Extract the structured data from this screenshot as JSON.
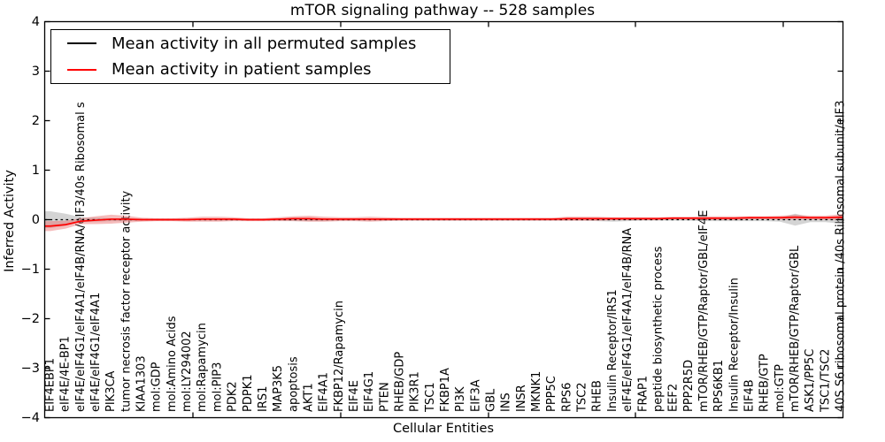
{
  "figure": {
    "title": "mTOR signaling pathway -- 528 samples",
    "background": "#ffffff",
    "frame_color": "#000000"
  },
  "chart_data": {
    "type": "line",
    "title": "mTOR signaling pathway -- 528 samples",
    "xlabel": "Cellular Entities",
    "ylabel": "Inferred Activity",
    "ylim": [
      -4,
      4
    ],
    "yticks": [
      4,
      3,
      2,
      1,
      0,
      -1,
      -2,
      -3,
      -4
    ],
    "yticklabels": [
      "4",
      "3",
      "2",
      "1",
      "0",
      "−1",
      "−2",
      "−3",
      "−4"
    ],
    "grid": false,
    "legend_position": "upper left",
    "categories": [
      "EIF4EBP1",
      "eIF4E/4E-BP1",
      "eIF4E/eIF4G1/eIF4A1/eIF4B/RNA/eIF3/40s Ribosomal s",
      "eIF4E/eIF4G1/eIF4A1",
      "PIK3CA",
      "tumor necrosis factor receptor activity",
      "KIAA1303",
      "mol:GDP",
      "mol:Amino Acids",
      "mol:LY294002",
      "mol:Rapamycin",
      "mol:PIP3",
      "PDK2",
      "PDPK1",
      "IRS1",
      "MAP3K5",
      "apoptosis",
      "AKT1",
      "EIF4A1",
      "FKBP12/Rapamycin",
      "EIF4E",
      "EIF4G1",
      "PTEN",
      "RHEB/GDP",
      "PIK3R1",
      "TSC1",
      "FKBP1A",
      "PI3K",
      "EIF3A",
      "GBL",
      "INS",
      "INSR",
      "MKNK1",
      "PPP5C",
      "RPS6",
      "TSC2",
      "RHEB",
      "Insulin Receptor/IRS1",
      "eIF4E/eIF4G1/eIF4A1/eIF4B/RNA",
      "FRAP1",
      "peptide biosynthetic process",
      "EEF2",
      "PPP2R5D",
      "mTOR/RHEB/GTP/Raptor/GBL/eIF4E",
      "RPS6KB1",
      "Insulin Receptor/Insulin",
      "EIF4B",
      "RHEB/GTP",
      "mol:GTP",
      "mTOR/RHEB/GTP/Raptor/GBL",
      "ASK1/PP5C",
      "TSC1/TSC2",
      "40S S6 ribosomal protein /40s Ribosomal subunit/eIF3"
    ],
    "series": [
      {
        "name": "Mean activity in all permuted samples",
        "color": "#000000",
        "style": "dashed",
        "band_color": "#aaaaaa",
        "band_opacity": 0.5,
        "values": [
          0,
          0,
          0,
          0,
          0,
          0,
          0,
          0,
          0,
          0,
          0,
          0,
          0,
          0,
          0,
          0,
          0,
          0,
          0,
          0,
          0,
          0,
          0,
          0,
          0,
          0,
          0,
          0,
          0,
          0,
          0,
          0,
          0,
          0,
          0,
          0,
          0,
          0,
          0,
          0,
          0,
          0,
          0,
          0,
          0,
          0,
          0,
          0,
          0,
          0,
          0,
          0,
          0
        ],
        "band_halfwidth": [
          0.17,
          0.12,
          0.05,
          0.04,
          0.03,
          0.03,
          0.02,
          0.02,
          0.02,
          0.02,
          0.02,
          0.02,
          0.02,
          0.02,
          0.02,
          0.02,
          0.03,
          0.03,
          0.03,
          0.02,
          0.02,
          0.02,
          0.02,
          0.02,
          0.02,
          0.02,
          0.02,
          0.02,
          0.02,
          0.02,
          0.02,
          0.02,
          0.02,
          0.02,
          0.02,
          0.02,
          0.03,
          0.04,
          0.03,
          0.02,
          0.02,
          0.02,
          0.02,
          0.03,
          0.03,
          0.03,
          0.03,
          0.03,
          0.04,
          0.12,
          0.05,
          0.05,
          0.08
        ]
      },
      {
        "name": "Mean activity in patient samples",
        "color": "#ff0000",
        "style": "solid",
        "band_color": "#e86a6a",
        "band_opacity": 0.45,
        "values": [
          -0.13,
          -0.1,
          -0.03,
          -0.01,
          0.01,
          0.01,
          0,
          0,
          0,
          0,
          0.01,
          0.01,
          0.01,
          0,
          0,
          0.01,
          0.02,
          0.02,
          0.01,
          0.01,
          0.01,
          0.01,
          0.01,
          0.01,
          0.01,
          0.01,
          0.01,
          0.01,
          0.01,
          0.01,
          0.01,
          0.01,
          0.01,
          0.01,
          0.02,
          0.02,
          0.02,
          0.02,
          0.02,
          0.02,
          0.02,
          0.03,
          0.03,
          0.03,
          0.03,
          0.03,
          0.04,
          0.04,
          0.04,
          0.05,
          0.04,
          0.04,
          0.05
        ],
        "band_halfwidth": [
          0.1,
          0.08,
          0.06,
          0.08,
          0.09,
          0.07,
          0.04,
          0.03,
          0.03,
          0.04,
          0.05,
          0.05,
          0.04,
          0.03,
          0.03,
          0.04,
          0.05,
          0.06,
          0.05,
          0.04,
          0.04,
          0.05,
          0.04,
          0.03,
          0.03,
          0.03,
          0.03,
          0.03,
          0.03,
          0.03,
          0.03,
          0.03,
          0.03,
          0.03,
          0.04,
          0.04,
          0.04,
          0.03,
          0.03,
          0.03,
          0.03,
          0.03,
          0.03,
          0.04,
          0.04,
          0.04,
          0.03,
          0.03,
          0.04,
          0.05,
          0.04,
          0.04,
          0.06
        ]
      }
    ]
  }
}
